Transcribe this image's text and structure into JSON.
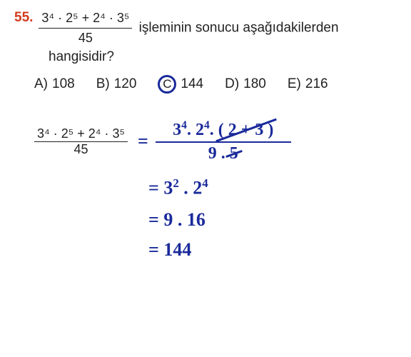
{
  "question": {
    "number": "55.",
    "numerator": "3⁴ · 2⁵ + 2⁴ · 3⁵",
    "denominator": "45",
    "text_after": " işleminin sonucu aşağıdakilerden",
    "line2": "hangisidir?"
  },
  "options": {
    "a": {
      "letter": "A)",
      "value": "108"
    },
    "b": {
      "letter": "B)",
      "value": "120"
    },
    "c": {
      "letter": "C",
      "value": "144"
    },
    "d": {
      "letter": "D)",
      "value": "180"
    },
    "e": {
      "letter": "E)",
      "value": "216"
    }
  },
  "work": {
    "printed_num": "3⁴ · 2⁵ + 2⁴ · 3⁵",
    "printed_den": "45",
    "hand_num_a": "3",
    "hand_num_a_exp": "4",
    "hand_num_dot1": ".",
    "hand_num_b": "2",
    "hand_num_b_exp": "4",
    "hand_num_dot2": ".",
    "hand_num_paren": "( 2 + 3 )",
    "hand_den_a": "9",
    "hand_den_dot": ".",
    "hand_den_b": "5",
    "step1_eq": "=",
    "step1_a": "3",
    "step1_a_exp": "2",
    "step1_dot": ".",
    "step1_b": "2",
    "step1_b_exp": "4",
    "step2": "= 9 . 16",
    "step3": "= 144"
  },
  "colors": {
    "ink": "#1a2a9a",
    "qnum": "#d23b1d",
    "text": "#222222",
    "bg": "#ffffff"
  }
}
